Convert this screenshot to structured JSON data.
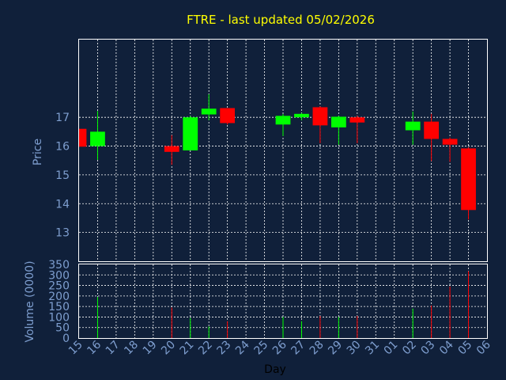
{
  "chart_data": {
    "type": "candlestick",
    "title": "FTRE - last updated 05/02/2026",
    "xlabel": "Day",
    "price_panel": {
      "ylabel": "Price",
      "ylim": [
        12.0,
        19.7
      ],
      "yticks": [
        13,
        14,
        15,
        16,
        17
      ]
    },
    "volume_panel": {
      "ylabel": "Volume (0000)",
      "ylim": [
        0,
        350
      ],
      "yticks": [
        0,
        50,
        100,
        150,
        200,
        250,
        300,
        350
      ]
    },
    "x_ticks": [
      "15",
      "16",
      "17",
      "18",
      "19",
      "20",
      "21",
      "22",
      "23",
      "24",
      "25",
      "26",
      "27",
      "28",
      "29",
      "30",
      "31",
      "01",
      "02",
      "03",
      "04",
      "05",
      "06"
    ],
    "up_color": "#00ff00",
    "down_color": "#ff0000",
    "candles": [
      {
        "day": "15",
        "open": 16.6,
        "high": 16.6,
        "low": 15.98,
        "close": 15.98,
        "volume": 0
      },
      {
        "day": "16",
        "open": 16.0,
        "high": 17.22,
        "low": 15.52,
        "close": 16.5,
        "volume": 195
      },
      {
        "day": "20",
        "open": 16.0,
        "high": 16.38,
        "low": 15.35,
        "close": 15.8,
        "volume": 145
      },
      {
        "day": "21",
        "open": 15.85,
        "high": 17.05,
        "low": 15.85,
        "close": 17.0,
        "volume": 95
      },
      {
        "day": "22",
        "open": 17.1,
        "high": 17.8,
        "low": 16.9,
        "close": 17.3,
        "volume": 55
      },
      {
        "day": "23",
        "open": 17.32,
        "high": 17.32,
        "low": 16.75,
        "close": 16.8,
        "volume": 80
      },
      {
        "day": "26",
        "open": 16.75,
        "high": 17.12,
        "low": 16.35,
        "close": 17.05,
        "volume": 100
      },
      {
        "day": "27",
        "open": 17.0,
        "high": 17.15,
        "low": 16.9,
        "close": 17.12,
        "volume": 80
      },
      {
        "day": "28",
        "open": 17.35,
        "high": 17.38,
        "low": 16.1,
        "close": 16.72,
        "volume": 105
      },
      {
        "day": "29",
        "open": 16.65,
        "high": 17.05,
        "low": 16.05,
        "close": 17.02,
        "volume": 100
      },
      {
        "day": "30",
        "open": 17.0,
        "high": 17.05,
        "low": 16.1,
        "close": 16.82,
        "volume": 105
      },
      {
        "day": "02",
        "open": 16.55,
        "high": 17.2,
        "low": 16.05,
        "close": 16.85,
        "volume": 140
      },
      {
        "day": "03",
        "open": 16.85,
        "high": 17.12,
        "low": 15.48,
        "close": 16.25,
        "volume": 155
      },
      {
        "day": "04",
        "open": 16.25,
        "high": 16.3,
        "low": 15.45,
        "close": 16.05,
        "volume": 245
      },
      {
        "day": "05",
        "open": 15.92,
        "high": 15.95,
        "low": 13.45,
        "close": 13.78,
        "volume": 318
      }
    ]
  }
}
